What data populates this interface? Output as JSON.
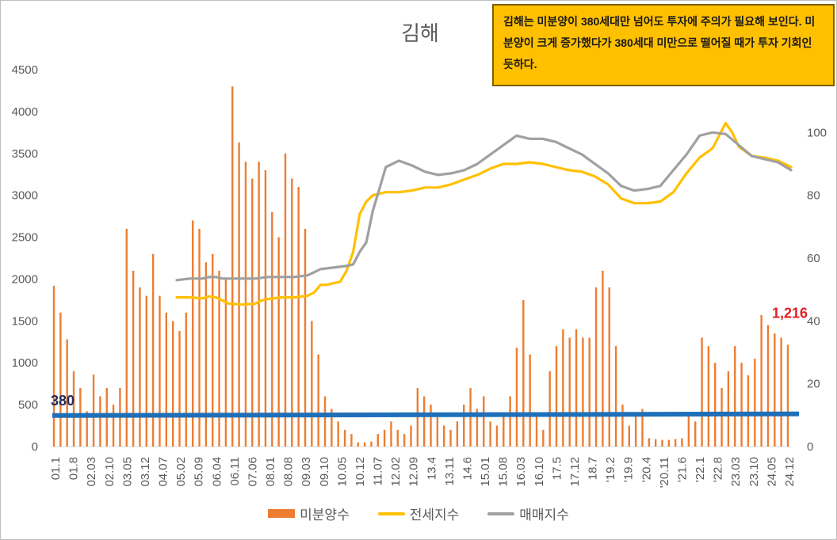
{
  "chart_data": {
    "type": "bar+line",
    "title": "김해",
    "annotation": "김해는 미분양이 380세대만 넘어도 투자에 주의가 필요해 보인다. 미분양이 크게 증가했다가 380세대 미만으로 떨어질 때가 투자 기회인 듯하다.",
    "threshold": {
      "value": 380,
      "label": "380",
      "color": "#1f6fb8"
    },
    "last_value_label": "1,216",
    "x_tick_labels": [
      "01.1",
      "01.8",
      "02.03",
      "02.10",
      "03.05",
      "03.12",
      "04.07",
      "05.02",
      "05.09",
      "06.04",
      "06.11",
      "07.06",
      "08.01",
      "08.08",
      "09.03",
      "09.10",
      "10.05",
      "10.12",
      "11.07",
      "12.02",
      "12.09",
      "13.4",
      "13.11",
      "14.6",
      "15.01",
      "15.08",
      "16.03",
      "16.10",
      "17.5",
      "17.12",
      "18.7",
      "'19.2",
      "'19.9",
      "'20.4",
      "'20.11",
      "'21.6",
      "'22.1",
      "'22.8",
      "23.03",
      "23.10",
      "24.05",
      "24.12"
    ],
    "y_left": {
      "range": [
        0,
        4500
      ],
      "ticks": [
        "0",
        "500",
        "1000",
        "1500",
        "2000",
        "2500",
        "3000",
        "3500",
        "4000",
        "4500"
      ]
    },
    "y_right": {
      "range": [
        0,
        120
      ],
      "ticks": [
        "0",
        "20",
        "40",
        "60",
        "80",
        "100"
      ]
    },
    "series": [
      {
        "name": "미분양수",
        "type": "bar",
        "axis": "left",
        "color": "#ed7d31",
        "points": [
          [
            0,
            1920
          ],
          [
            1,
            1600
          ],
          [
            2,
            1280
          ],
          [
            3,
            900
          ],
          [
            4,
            700
          ],
          [
            5,
            420
          ],
          [
            6,
            860
          ],
          [
            7,
            600
          ],
          [
            8,
            700
          ],
          [
            9,
            500
          ],
          [
            10,
            700
          ],
          [
            11,
            2600
          ],
          [
            12,
            2100
          ],
          [
            13,
            1900
          ],
          [
            14,
            1800
          ],
          [
            15,
            2300
          ],
          [
            16,
            1800
          ],
          [
            17,
            1600
          ],
          [
            18,
            1500
          ],
          [
            19,
            1380
          ],
          [
            20,
            1600
          ],
          [
            21,
            2700
          ],
          [
            22,
            2600
          ],
          [
            23,
            2200
          ],
          [
            24,
            2300
          ],
          [
            25,
            2100
          ],
          [
            26,
            2000
          ],
          [
            27,
            4300
          ],
          [
            28,
            3630
          ],
          [
            29,
            3400
          ],
          [
            30,
            3200
          ],
          [
            31,
            3400
          ],
          [
            32,
            3300
          ],
          [
            33,
            2800
          ],
          [
            34,
            2500
          ],
          [
            35,
            3500
          ],
          [
            36,
            3200
          ],
          [
            37,
            3100
          ],
          [
            38,
            2600
          ],
          [
            39,
            1500
          ],
          [
            40,
            1100
          ],
          [
            41,
            600
          ],
          [
            42,
            450
          ],
          [
            43,
            300
          ],
          [
            44,
            200
          ],
          [
            45,
            150
          ],
          [
            46,
            50
          ],
          [
            47,
            50
          ],
          [
            48,
            60
          ],
          [
            49,
            150
          ],
          [
            50,
            200
          ],
          [
            51,
            300
          ],
          [
            52,
            200
          ],
          [
            53,
            150
          ],
          [
            54,
            250
          ],
          [
            55,
            700
          ],
          [
            56,
            600
          ],
          [
            57,
            500
          ],
          [
            58,
            350
          ],
          [
            59,
            250
          ],
          [
            60,
            200
          ],
          [
            61,
            300
          ],
          [
            62,
            500
          ],
          [
            63,
            700
          ],
          [
            64,
            450
          ],
          [
            65,
            600
          ],
          [
            66,
            300
          ],
          [
            67,
            250
          ],
          [
            68,
            400
          ],
          [
            69,
            600
          ],
          [
            70,
            1180
          ],
          [
            71,
            1750
          ],
          [
            72,
            1100
          ],
          [
            73,
            400
          ],
          [
            74,
            200
          ],
          [
            75,
            900
          ],
          [
            76,
            1200
          ],
          [
            77,
            1400
          ],
          [
            78,
            1300
          ],
          [
            79,
            1400
          ],
          [
            80,
            1300
          ],
          [
            81,
            1300
          ],
          [
            82,
            1900
          ],
          [
            83,
            2100
          ],
          [
            84,
            1900
          ],
          [
            85,
            1200
          ],
          [
            86,
            500
          ],
          [
            87,
            250
          ],
          [
            88,
            400
          ],
          [
            89,
            450
          ],
          [
            90,
            100
          ],
          [
            91,
            90
          ],
          [
            92,
            80
          ],
          [
            93,
            80
          ],
          [
            94,
            90
          ],
          [
            95,
            100
          ],
          [
            96,
            400
          ],
          [
            97,
            300
          ],
          [
            98,
            1300
          ],
          [
            99,
            1200
          ],
          [
            100,
            1000
          ],
          [
            101,
            700
          ],
          [
            102,
            900
          ],
          [
            103,
            1200
          ],
          [
            104,
            1000
          ],
          [
            105,
            850
          ],
          [
            106,
            1050
          ],
          [
            107,
            1570
          ],
          [
            108,
            1450
          ],
          [
            109,
            1350
          ],
          [
            110,
            1300
          ],
          [
            111,
            1216
          ]
        ]
      },
      {
        "name": "전세지수",
        "type": "line",
        "axis": "right",
        "color": "#ffc000",
        "points": [
          [
            4,
            47.5
          ],
          [
            5,
            47.5
          ],
          [
            6,
            47.2
          ],
          [
            6.5,
            47.8
          ],
          [
            7,
            47.5
          ],
          [
            7.5,
            46.5
          ],
          [
            8,
            45.5
          ],
          [
            9,
            45.2
          ],
          [
            10,
            45.5
          ],
          [
            10.5,
            46.5
          ],
          [
            11,
            47
          ],
          [
            12,
            47.5
          ],
          [
            13,
            47.5
          ],
          [
            14,
            48
          ],
          [
            14.5,
            49
          ],
          [
            15,
            51.5
          ],
          [
            15.5,
            51.5
          ],
          [
            16,
            52
          ],
          [
            16.5,
            52.5
          ],
          [
            17,
            56
          ],
          [
            17.5,
            62
          ],
          [
            18,
            74
          ],
          [
            18.5,
            78
          ],
          [
            19,
            80
          ],
          [
            20,
            81
          ],
          [
            21,
            81
          ],
          [
            22,
            81.5
          ],
          [
            23,
            82.5
          ],
          [
            24,
            82.5
          ],
          [
            25,
            83.5
          ],
          [
            26,
            85
          ],
          [
            27,
            86.5
          ],
          [
            28,
            88.5
          ],
          [
            29,
            90
          ],
          [
            30,
            90
          ],
          [
            31,
            90.5
          ],
          [
            32,
            90
          ],
          [
            33,
            89
          ],
          [
            34,
            88
          ],
          [
            35,
            87.5
          ],
          [
            36,
            86
          ],
          [
            37,
            83.5
          ],
          [
            38,
            79
          ],
          [
            39,
            77.5
          ],
          [
            40,
            77.5
          ],
          [
            41,
            78
          ],
          [
            42,
            81
          ],
          [
            43,
            87
          ],
          [
            44,
            92
          ],
          [
            45,
            95
          ],
          [
            46,
            103
          ],
          [
            46.5,
            100
          ],
          [
            47,
            95.5
          ],
          [
            48,
            92.5
          ],
          [
            49,
            92
          ],
          [
            50,
            91
          ],
          [
            51,
            89
          ]
        ]
      },
      {
        "name": "매매지수",
        "type": "line",
        "axis": "right",
        "color": "#a0a0a0",
        "points": [
          [
            4,
            53
          ],
          [
            5,
            53.5
          ],
          [
            6,
            53.5
          ],
          [
            6.5,
            54
          ],
          [
            7,
            54
          ],
          [
            7.5,
            53.5
          ],
          [
            8,
            53.5
          ],
          [
            9,
            53.5
          ],
          [
            10,
            53.5
          ],
          [
            11,
            54
          ],
          [
            12,
            54
          ],
          [
            13,
            54
          ],
          [
            14,
            54.5
          ],
          [
            14.5,
            55.5
          ],
          [
            15,
            56.5
          ],
          [
            16,
            57
          ],
          [
            17,
            57.5
          ],
          [
            17.5,
            58
          ],
          [
            18,
            62
          ],
          [
            18.5,
            65
          ],
          [
            19,
            75
          ],
          [
            19.5,
            82
          ],
          [
            20,
            89
          ],
          [
            21,
            91
          ],
          [
            22,
            89.5
          ],
          [
            23,
            87.5
          ],
          [
            24,
            86.5
          ],
          [
            25,
            87
          ],
          [
            26,
            88
          ],
          [
            27,
            90
          ],
          [
            28,
            93
          ],
          [
            29,
            96
          ],
          [
            30,
            99
          ],
          [
            31,
            98
          ],
          [
            32,
            98
          ],
          [
            33,
            97
          ],
          [
            34,
            95
          ],
          [
            35,
            93
          ],
          [
            36,
            90
          ],
          [
            37,
            87
          ],
          [
            38,
            83
          ],
          [
            39,
            81.5
          ],
          [
            40,
            82
          ],
          [
            41,
            83
          ],
          [
            42,
            88
          ],
          [
            43,
            93
          ],
          [
            44,
            99
          ],
          [
            45,
            100
          ],
          [
            46,
            99.5
          ],
          [
            47,
            96
          ],
          [
            48,
            92.5
          ],
          [
            49,
            91.5
          ],
          [
            50,
            90.5
          ],
          [
            51,
            88
          ]
        ]
      }
    ]
  },
  "legend": [
    {
      "label": "미분양수",
      "color": "#ed7d31"
    },
    {
      "label": "전세지수",
      "color": "#ffc000"
    },
    {
      "label": "매매지수",
      "color": "#a0a0a0"
    }
  ]
}
